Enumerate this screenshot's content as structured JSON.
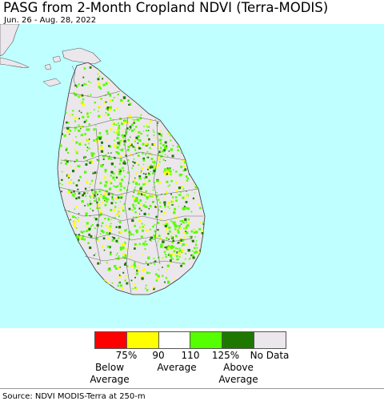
{
  "title": "PASG from 2-Month Cropland NDVI (Terra-MODIS)",
  "date_range": "Jun. 26 - Aug. 28, 2022",
  "legend": {
    "colors": [
      "#ff0000",
      "#ffff00",
      "#ffffff",
      "#55ff00",
      "#1e7800",
      "#ebe7ec"
    ],
    "ticks": [
      "75%",
      "90",
      "110",
      "125%",
      "No Data"
    ],
    "below_line1": "Below",
    "below_line2": "Average",
    "mid": "Average",
    "above_line1": "Above",
    "above_line2": "Average"
  },
  "colors": {
    "water": "#bfffff",
    "land": "#ebe7ec",
    "boundary": "#555555"
  },
  "source": "Source: NDVI MODIS-Terra at 250-m"
}
